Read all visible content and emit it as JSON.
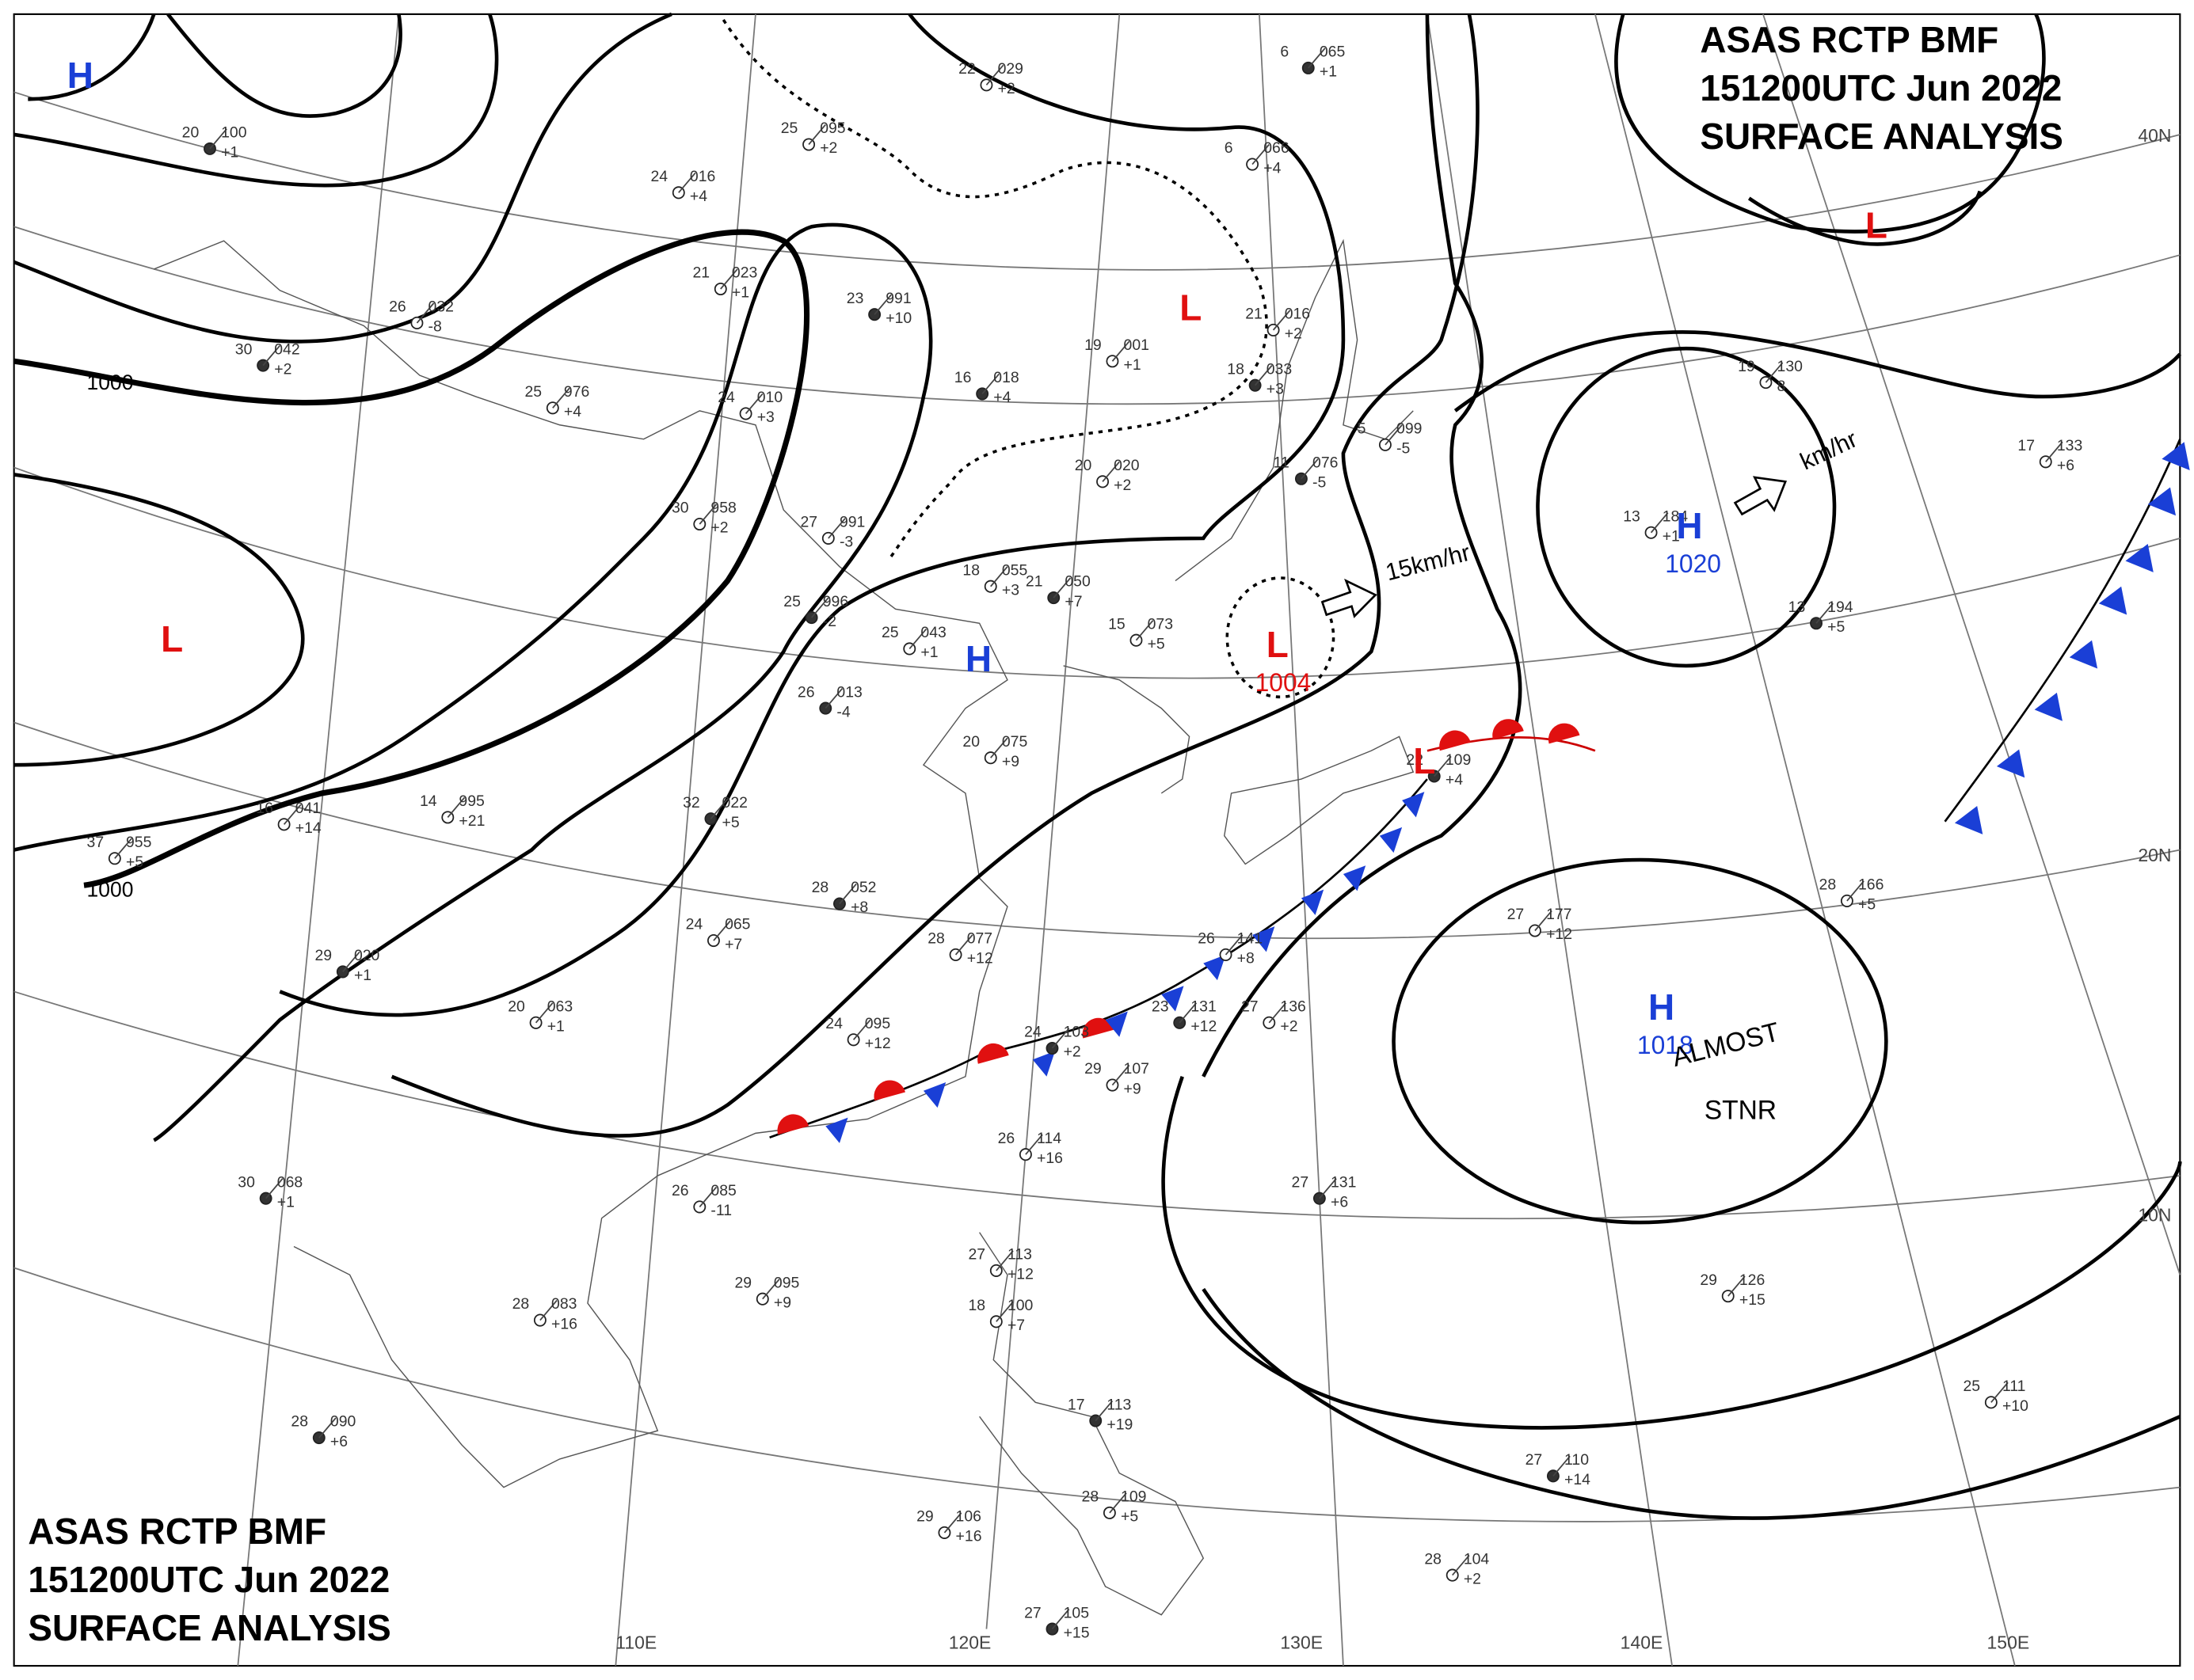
{
  "header_top": {
    "line1": "ASAS   RCTP   BMF",
    "line2": "151200UTC   Jun   2022",
    "line3": "SURFACE  ANALYSIS"
  },
  "header_bottom": {
    "line1": "ASAS   RCTP   BMF",
    "line2": "151200UTC   Jun   2022",
    "line3": "SURFACE  ANALYSIS"
  },
  "grid_labels": {
    "lat": [
      "40N",
      "20N",
      "10N"
    ],
    "lon": [
      "110E",
      "120E",
      "130E",
      "140E",
      "150E"
    ]
  },
  "pressure_systems": [
    {
      "symbol": "H",
      "value": null
    },
    {
      "symbol": "L",
      "value": null
    },
    {
      "symbol": "H",
      "value": null
    },
    {
      "symbol": "L",
      "value": null
    },
    {
      "symbol": "L",
      "value": "1004"
    },
    {
      "symbol": "H",
      "value": "1020"
    },
    {
      "symbol": "L",
      "value": null
    },
    {
      "symbol": "L",
      "value": null
    },
    {
      "symbol": "H",
      "value": "1018"
    }
  ],
  "isobar_labels": [
    "1000",
    "1000"
  ],
  "annotations": [
    "15km/hr",
    "km/hr",
    "ALMOST",
    "STNR"
  ],
  "stations": [
    [
      "20",
      "100",
      "+1"
    ],
    [
      "24",
      "016",
      "+4"
    ],
    [
      "21",
      "023",
      "+1"
    ],
    [
      "23",
      "991",
      "+10"
    ],
    [
      "25",
      "095",
      "+2"
    ],
    [
      "22",
      "029",
      "+2"
    ],
    [
      "6",
      "065",
      "+1"
    ],
    [
      "6",
      "066",
      "+4"
    ],
    [
      "26",
      "032",
      "-8"
    ],
    [
      "30",
      "042",
      "+2"
    ],
    [
      "25",
      "976",
      "+4"
    ],
    [
      "24",
      "010",
      "+3"
    ],
    [
      "16",
      "018",
      "+4"
    ],
    [
      "19",
      "001",
      "+1"
    ],
    [
      "21",
      "016",
      "+2"
    ],
    [
      "18",
      "033",
      "+3"
    ],
    [
      "30",
      "958",
      "+2"
    ],
    [
      "27",
      "991",
      "-3"
    ],
    [
      "25",
      "996",
      "-2"
    ],
    [
      "25",
      "043",
      "+1"
    ],
    [
      "18",
      "055",
      "+3"
    ],
    [
      "21",
      "050",
      "+7"
    ],
    [
      "15",
      "073",
      "+5"
    ],
    [
      "20",
      "020",
      "+2"
    ],
    [
      "11",
      "076",
      "-5"
    ],
    [
      "5",
      "099",
      "-5"
    ],
    [
      "13",
      "184",
      "+1"
    ],
    [
      "13",
      "194",
      "+5"
    ],
    [
      "17",
      "133",
      "+6"
    ],
    [
      "19",
      "130",
      "8"
    ],
    [
      "26",
      "013",
      "-4"
    ],
    [
      "20",
      "075",
      "+9"
    ],
    [
      "14",
      "995",
      "+21"
    ],
    [
      "32",
      "022",
      "+5"
    ],
    [
      "37",
      "955",
      "+5"
    ],
    [
      "16",
      "041",
      "+14"
    ],
    [
      "28",
      "052",
      "+8"
    ],
    [
      "24",
      "065",
      "+7"
    ],
    [
      "28",
      "077",
      "+12"
    ],
    [
      "29",
      "020",
      "+1"
    ],
    [
      "20",
      "063",
      "+1"
    ],
    [
      "24",
      "095",
      "+12"
    ],
    [
      "24",
      "103",
      "+2"
    ],
    [
      "29",
      "107",
      "+9"
    ],
    [
      "26",
      "114",
      "+16"
    ],
    [
      "23",
      "131",
      "+12"
    ],
    [
      "27",
      "136",
      "+2"
    ],
    [
      "26",
      "141",
      "+8"
    ],
    [
      "22",
      "109",
      "+4"
    ],
    [
      "27",
      "177",
      "+12"
    ],
    [
      "28",
      "166",
      "+5"
    ],
    [
      "27",
      "131",
      "+6"
    ],
    [
      "29",
      "126",
      "+15"
    ],
    [
      "25",
      "111",
      "+10"
    ],
    [
      "27",
      "110",
      "+14"
    ],
    [
      "28",
      "104",
      "+2"
    ],
    [
      "26",
      "085",
      "-11"
    ],
    [
      "30",
      "068",
      "+1"
    ],
    [
      "29",
      "095",
      "+9"
    ],
    [
      "28",
      "083",
      "+16"
    ],
    [
      "28",
      "090",
      "+6"
    ],
    [
      "27",
      "113",
      "+12"
    ],
    [
      "18",
      "100",
      "+7"
    ],
    [
      "17",
      "113",
      "+19"
    ],
    [
      "29",
      "106",
      "+16"
    ],
    [
      "28",
      "109",
      "+5"
    ],
    [
      "27",
      "105",
      "+15"
    ]
  ]
}
